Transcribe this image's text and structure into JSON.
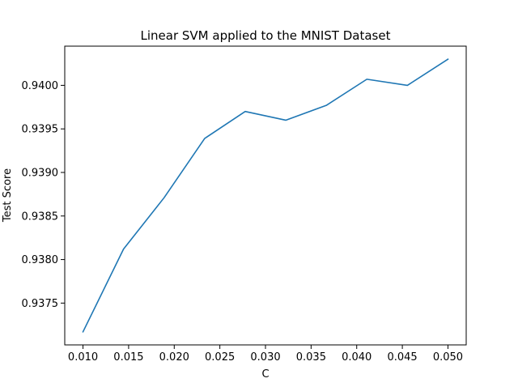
{
  "chart_data": {
    "type": "line",
    "title": "Linear SVM applied to the MNIST Dataset",
    "xlabel": "C",
    "ylabel": "Test Score",
    "x": [
      0.01,
      0.014444,
      0.018889,
      0.023333,
      0.027778,
      0.032222,
      0.036667,
      0.041111,
      0.045556,
      0.05
    ],
    "series": [
      {
        "values": [
          0.93717,
          0.93812,
          0.93871,
          0.93939,
          0.9397,
          0.9396,
          0.93977,
          0.94007,
          0.94,
          0.9403
        ],
        "color": "#1f77b4"
      }
    ],
    "xlim": [
      0.008,
      0.052
    ],
    "ylim": [
      0.93702,
      0.94045
    ],
    "xticks": [
      0.01,
      0.015,
      0.02,
      0.025,
      0.03,
      0.035,
      0.04,
      0.045,
      0.05
    ],
    "xtick_labels": [
      "0.010",
      "0.015",
      "0.020",
      "0.025",
      "0.030",
      "0.035",
      "0.040",
      "0.045",
      "0.050"
    ],
    "yticks": [
      0.9375,
      0.938,
      0.9385,
      0.939,
      0.9395,
      0.94
    ],
    "ytick_labels": [
      "0.9375",
      "0.9380",
      "0.9385",
      "0.9390",
      "0.9395",
      "0.9400"
    ],
    "grid": false,
    "legend": "none"
  }
}
